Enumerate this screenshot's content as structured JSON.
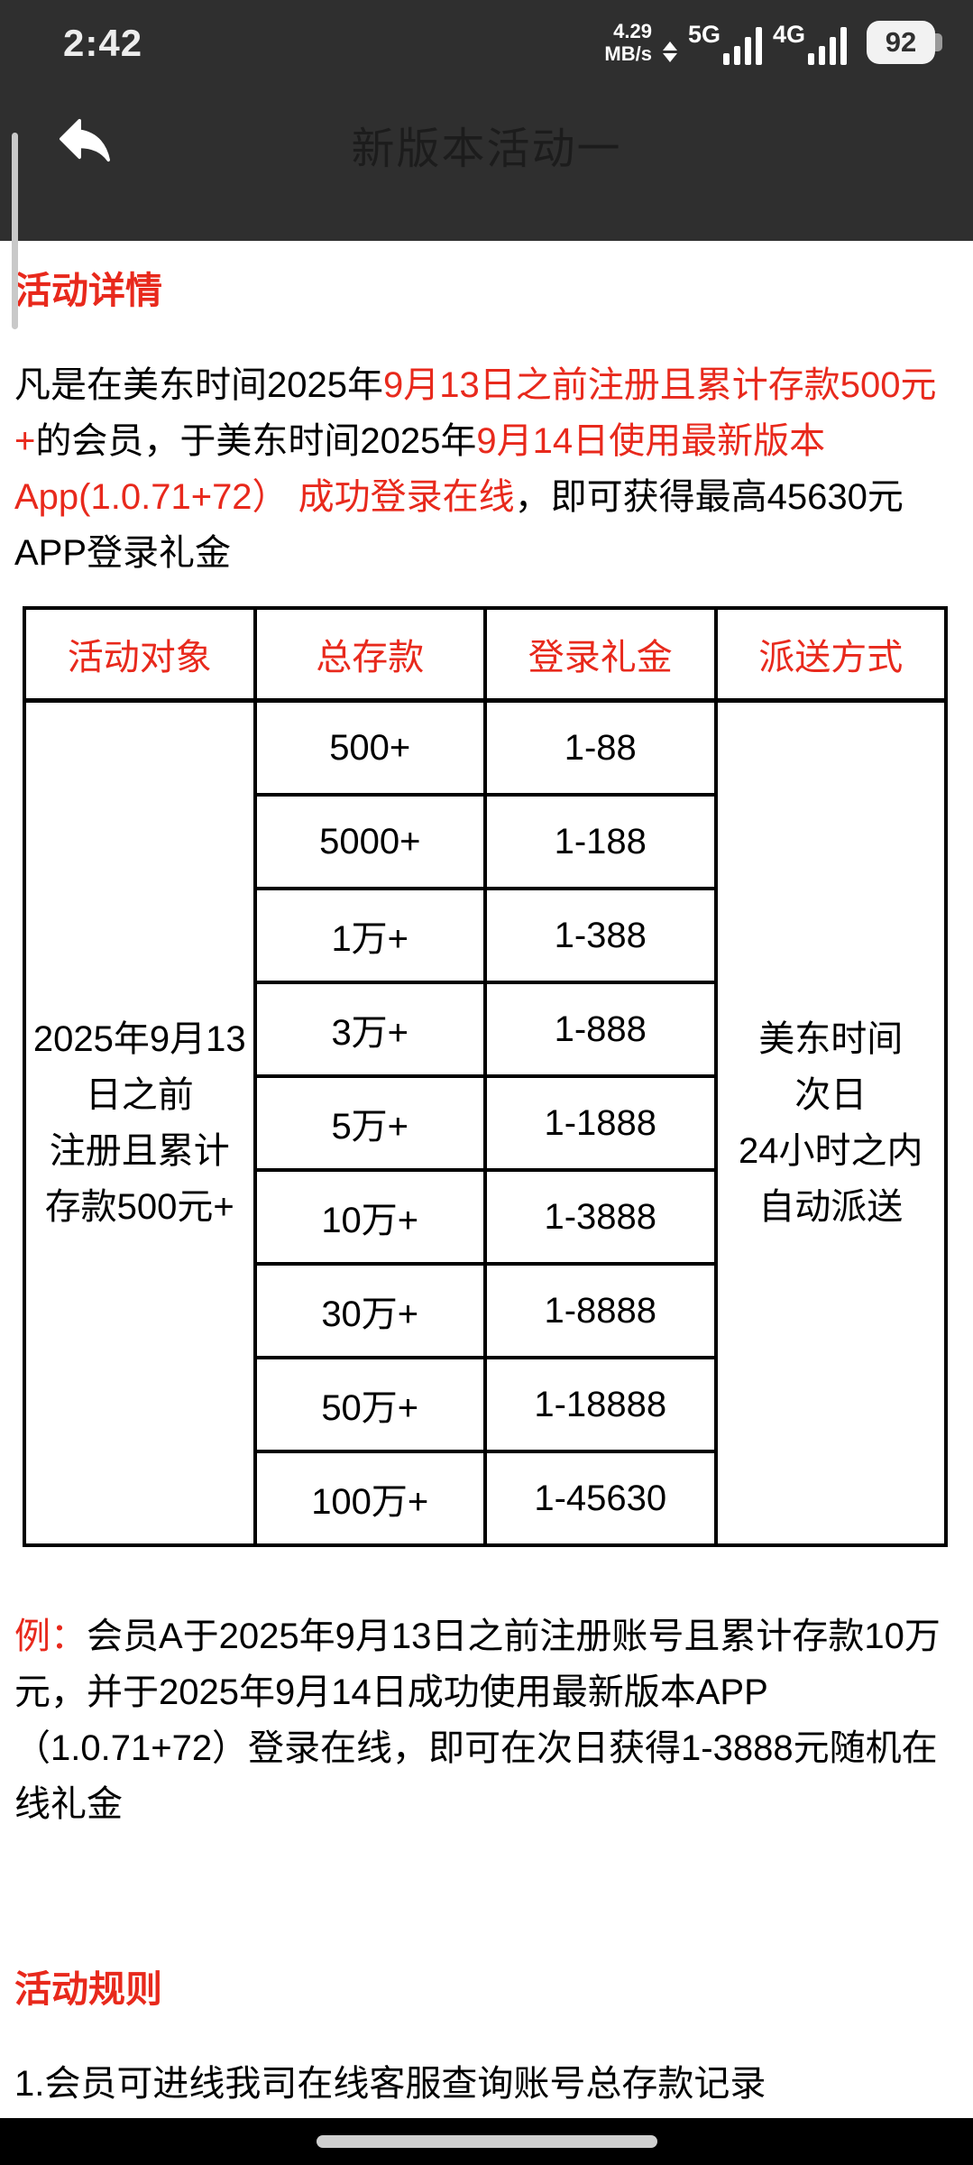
{
  "status_bar": {
    "time": "2:42",
    "speed_value": "4.29",
    "speed_unit": "MB/s",
    "sim1_label": "5G",
    "sim2_label": "4G",
    "battery_level": "92"
  },
  "header": {
    "title": "新版本活动一"
  },
  "content": {
    "details_heading": "活动详情",
    "intro": {
      "segments": [
        {
          "text": "凡是在美东时间2025年",
          "red": false
        },
        {
          "text": "9月13日之前注册且累计存款500元+",
          "red": true
        },
        {
          "text": "的会员，于美东时间2025年",
          "red": false
        },
        {
          "text": "9月14日使用最新版本App(1.0.71+72） 成功登录在线",
          "red": true
        },
        {
          "text": "，即可获得最高45630元APP登录礼金",
          "red": false
        }
      ]
    },
    "table": {
      "headers": [
        "活动对象",
        "总存款",
        "登录礼金",
        "派送方式"
      ],
      "audience_lines": [
        "2025年9月13日之前",
        "注册且累计存款500元+"
      ],
      "rows": [
        {
          "deposit": "500+",
          "bonus": "1-88"
        },
        {
          "deposit": "5000+",
          "bonus": "1-188"
        },
        {
          "deposit": "1万+",
          "bonus": "1-388"
        },
        {
          "deposit": "3万+",
          "bonus": "1-888"
        },
        {
          "deposit": "5万+",
          "bonus": "1-1888"
        },
        {
          "deposit": "10万+",
          "bonus": "1-3888"
        },
        {
          "deposit": "30万+",
          "bonus": "1-8888"
        },
        {
          "deposit": "50万+",
          "bonus": "1-18888"
        },
        {
          "deposit": "100万+",
          "bonus": "1-45630"
        }
      ],
      "delivery_lines": [
        "美东时间",
        "次日",
        "24小时之内",
        "自动派送"
      ]
    },
    "example": {
      "segments": [
        {
          "text": "例：",
          "red": true
        },
        {
          "text": "会员A于2025年9月13日之前注册账号且累计存款10万元，并于2025年9月14日成功使用最新版本APP（1.0.71+72）登录在线，即可在次日获得1-3888元随机在线礼金",
          "red": false
        }
      ]
    },
    "rules_heading": "活动规则",
    "rules": [
      "1.会员可进线我司在线客服查询账号总存款记录"
    ]
  },
  "colors": {
    "accent_red": "#e8291c",
    "header_bg": "#2f2f2f",
    "header_title": "#1c1c1c",
    "table_border": "#000000",
    "nav_bar_bg": "#000000",
    "home_indicator": "#d0d0d0",
    "battery_fill": "#f2f2f2",
    "scrollbar_thumb": "#c9c9c9"
  }
}
